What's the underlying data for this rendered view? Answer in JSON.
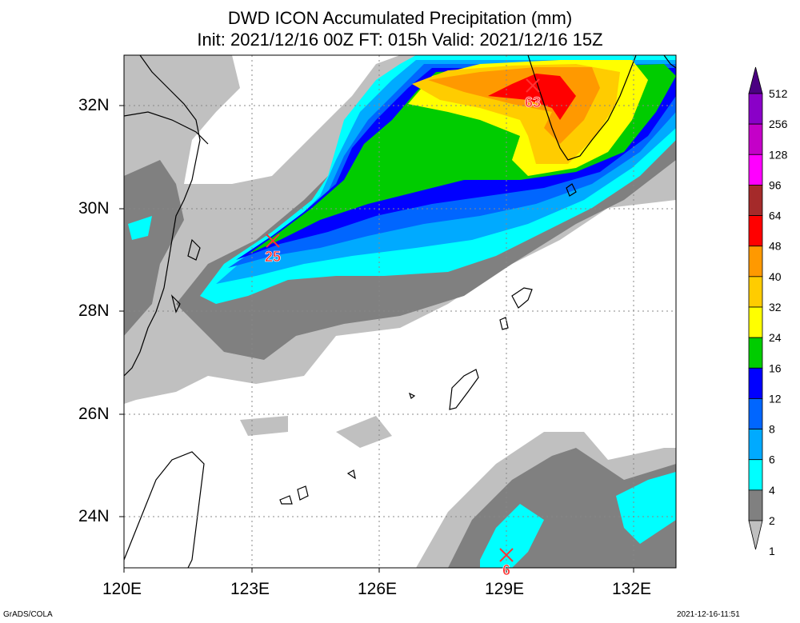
{
  "title_line1": "DWD ICON Accumulated Precipitation (mm)",
  "title_line2": "Init: 2021/12/16 00Z  FT: 015h  Valid: 2021/12/16 15Z",
  "lat_labels": [
    "32N",
    "30N",
    "28N",
    "26N",
    "24N"
  ],
  "lon_labels": [
    "120E",
    "123E",
    "126E",
    "129E",
    "132E"
  ],
  "legend": {
    "levels": [
      "512",
      "256",
      "128",
      "96",
      "64",
      "48",
      "40",
      "32",
      "24",
      "16",
      "12",
      "8",
      "6",
      "4",
      "2",
      "1"
    ],
    "colors": [
      "#4b0082",
      "#8a00c8",
      "#c400c8",
      "#ff00ff",
      "#a52a2a",
      "#ff0000",
      "#ff9900",
      "#ffcc00",
      "#ffff00",
      "#00cc00",
      "#0000ff",
      "#0066ff",
      "#00aaff",
      "#00ffff",
      "#808080",
      "#c0c0c0"
    ]
  },
  "markers": [
    {
      "label": "63"
    },
    {
      "label": "25"
    },
    {
      "label": "6"
    }
  ],
  "footer_left": "GrADS/COLA",
  "footer_right": "2021-12-16-11:51",
  "colors": {
    "light_gray": "#c0c0c0",
    "dark_gray": "#808080",
    "cyan": "#00ffff",
    "light_blue": "#00aaff",
    "blue": "#0066ff",
    "deep_blue": "#0000ff",
    "green": "#00cc00",
    "yellow": "#ffff00",
    "gold": "#ffcc00",
    "orange": "#ff9900",
    "red": "#ff0000",
    "marker": "#ff3333"
  }
}
